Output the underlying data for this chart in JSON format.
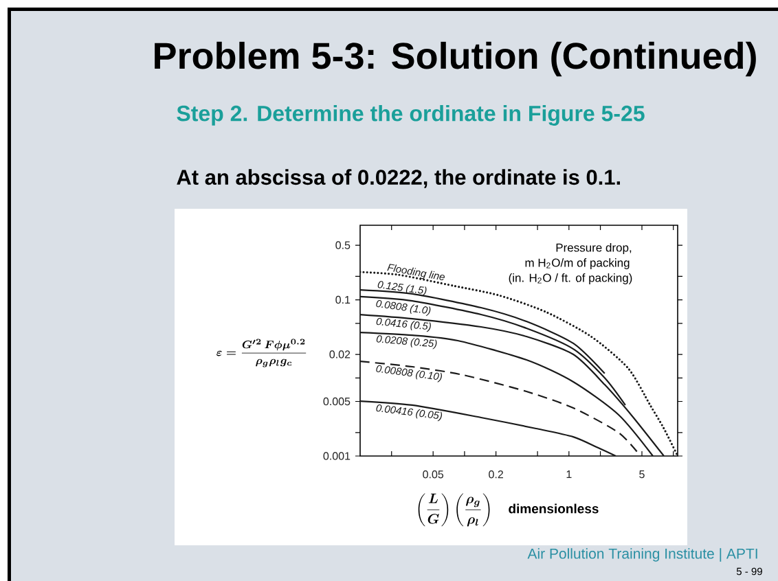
{
  "chart_data": {
    "type": "line",
    "title": "Problem 5-3: Solution (Continued)",
    "subtitle": "Step 2. Determine the ordinate in Figure 5-25",
    "xlabel": "\\left(\\frac{L}{G}\\right)\\left(\\frac{\\rho_{g}}{\\rho_{l}}\\right)\\quad\\textbf{dimensionless}",
    "ylabel": "\\varepsilon = \\frac{G'^{2}\\,F\\phi\\mu^{0.2}}{\\rho_{g}\\rho_{l}g_{c}}",
    "annotations": [
      "At an abscissa of 0.0222, the ordinate is 0.1.",
      "Pressure drop,",
      "m H$_{2}$O/m of packing",
      "(in. H$_{2}$O / ft. of packing)",
      "Air Pollution Training Institute | APTI",
      "5 - 99"
    ],
    "log": "xy",
    "xlim": [
      0.01,
      11
    ],
    "ylim": [
      0.001,
      0.9
    ],
    "xticks": [
      {
        "value": 0.02,
        "label": null
      },
      0.05,
      {
        "value": 0.1,
        "label": null
      },
      0.2,
      {
        "value": 0.5,
        "label": null
      },
      1,
      {
        "value": 2,
        "label": null
      },
      5,
      {
        "value": 10,
        "label": null
      }
    ],
    "yticks": [
      0.001,
      {
        "value": 0.002,
        "label": null
      },
      0.005,
      {
        "value": 0.01,
        "label": null
      },
      0.02,
      {
        "value": 0.05,
        "label": null
      },
      0.1,
      {
        "value": 0.2,
        "label": null
      },
      0.5
    ],
    "marker": "none",
    "series": [
      {
        "name": "Flooding line",
        "color": "#1a1a1a",
        "line_style": "dotted",
        "x": [
          0.01,
          0.0234,
          0.0786,
          0.214,
          0.599,
          1.63,
          3.69,
          6.0,
          8.12,
          11
        ],
        "values": [
          0.227,
          0.209,
          0.151,
          0.114,
          0.0701,
          0.0339,
          0.0133,
          0.00448,
          0.00225,
          0.001
        ]
      },
      {
        "name": "0.125 (1.5)",
        "color": "#1a1a1a",
        "line_style": "solid",
        "x": [
          0.01,
          0.0316,
          0.144,
          0.392,
          1.1,
          2.2
        ],
        "values": [
          0.134,
          0.119,
          0.0793,
          0.0528,
          0.0277,
          0.0114
        ]
      },
      {
        "name": "0.0808 (1.0)",
        "color": "#1a1a1a",
        "line_style": "solid",
        "x": [
          0.01,
          0.0316,
          0.144,
          0.392,
          1.1,
          2.2,
          3.47
        ],
        "values": [
          0.11,
          0.097,
          0.0647,
          0.0432,
          0.0235,
          0.01,
          0.00448
        ]
      },
      {
        "name": "0.0416 (0.5)",
        "color": "#1a1a1a",
        "line_style": "solid",
        "x": [
          0.01,
          0.0316,
          0.144,
          0.392,
          1.1,
          2.2,
          4.04,
          8.12
        ],
        "values": [
          0.0647,
          0.0573,
          0.045,
          0.0339,
          0.02,
          0.0082,
          0.00324,
          0.001
        ]
      },
      {
        "name": "0.0208 (0.25)",
        "color": "#1a1a1a",
        "line_style": "solid",
        "x": [
          0.01,
          0.0316,
          0.0861,
          0.392,
          1.1,
          2.99,
          6.37
        ],
        "values": [
          0.0382,
          0.0352,
          0.03,
          0.017,
          0.00891,
          0.00337,
          0.001
        ]
      },
      {
        "name": "0.00808 (0.10)",
        "color": "#1a1a1a",
        "line_style": "dashed",
        "x": [
          0.01,
          0.0316,
          0.0971,
          0.392,
          1.1,
          2.99,
          4.85
        ],
        "values": [
          0.0163,
          0.0139,
          0.0109,
          0.0067,
          0.00412,
          0.00199,
          0.001
        ]
      },
      {
        "name": "0.00416 (0.05)",
        "color": "#1a1a1a",
        "line_style": "solid",
        "x": [
          0.01,
          0.0316,
          0.144,
          0.484,
          1.1,
          1.89,
          2.81
        ],
        "values": [
          0.00505,
          0.00448,
          0.00311,
          0.00225,
          0.00176,
          0.00128,
          0.001
        ]
      }
    ]
  }
}
